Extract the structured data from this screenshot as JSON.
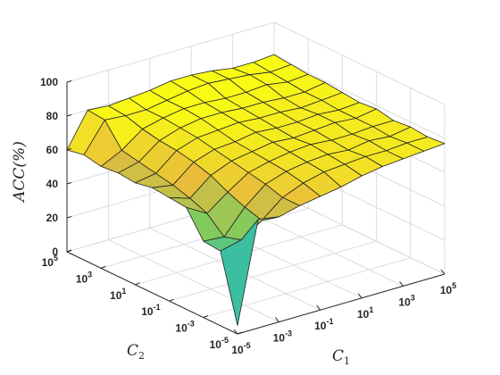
{
  "chart_data": {
    "type": "surface3d",
    "title": "",
    "xlabel": "C",
    "xlabel_sub": "1",
    "ylabel": "C",
    "ylabel_sub": "2",
    "zlabel": "ACC(%)",
    "zlim": [
      0,
      100
    ],
    "z_ticks": [
      "0",
      "20",
      "40",
      "60",
      "80",
      "100"
    ],
    "x_ticks": [
      {
        "base": "10",
        "exp": "-5"
      },
      {
        "base": "10",
        "exp": "-3"
      },
      {
        "base": "10",
        "exp": "-1"
      },
      {
        "base": "10",
        "exp": "1"
      },
      {
        "base": "10",
        "exp": "3"
      },
      {
        "base": "10",
        "exp": "5"
      }
    ],
    "y_ticks": [
      {
        "base": "10",
        "exp": "-5"
      },
      {
        "base": "10",
        "exp": "-3"
      },
      {
        "base": "10",
        "exp": "-1"
      },
      {
        "base": "10",
        "exp": "1"
      },
      {
        "base": "10",
        "exp": "3"
      },
      {
        "base": "10",
        "exp": "5"
      }
    ],
    "x_log10": [
      -5,
      -4,
      -3,
      -2,
      -1,
      0,
      1,
      2,
      3,
      4,
      5
    ],
    "y_log10": [
      -5,
      -4,
      -3,
      -2,
      -1,
      0,
      1,
      2,
      3,
      4,
      5
    ],
    "z": [
      [
        5,
        64,
        62,
        65,
        67,
        69,
        72,
        74,
        75,
        76,
        77
      ],
      [
        44,
        47,
        55,
        65,
        70,
        73,
        74,
        75,
        75,
        76,
        76
      ],
      [
        45,
        44,
        58,
        68,
        72,
        74,
        75,
        74,
        76,
        75,
        77
      ],
      [
        60,
        53,
        62,
        70,
        73,
        75,
        76,
        75,
        75,
        76,
        76
      ],
      [
        61,
        57,
        67,
        72,
        74,
        76,
        75,
        76,
        77,
        76,
        78
      ],
      [
        62,
        60,
        70,
        74,
        75,
        77,
        76,
        76,
        77,
        76,
        77
      ],
      [
        60,
        62,
        72,
        76,
        77,
        78,
        77,
        77,
        76,
        77,
        78
      ],
      [
        61,
        64,
        73,
        77,
        79,
        79,
        78,
        78,
        77,
        77,
        79
      ],
      [
        60,
        66,
        75,
        78,
        80,
        80,
        79,
        79,
        80,
        78,
        79
      ],
      [
        62,
        79,
        78,
        78,
        80,
        82,
        83,
        82,
        81,
        79,
        80
      ],
      [
        60,
        80,
        79,
        80,
        81,
        83,
        83,
        82,
        80,
        80,
        81
      ]
    ],
    "colormap": [
      "#3e26a8",
      "#2d7cf5",
      "#1bb9c2",
      "#7fcb5e",
      "#e8ba3d",
      "#f9fb15"
    ],
    "grid": true
  }
}
